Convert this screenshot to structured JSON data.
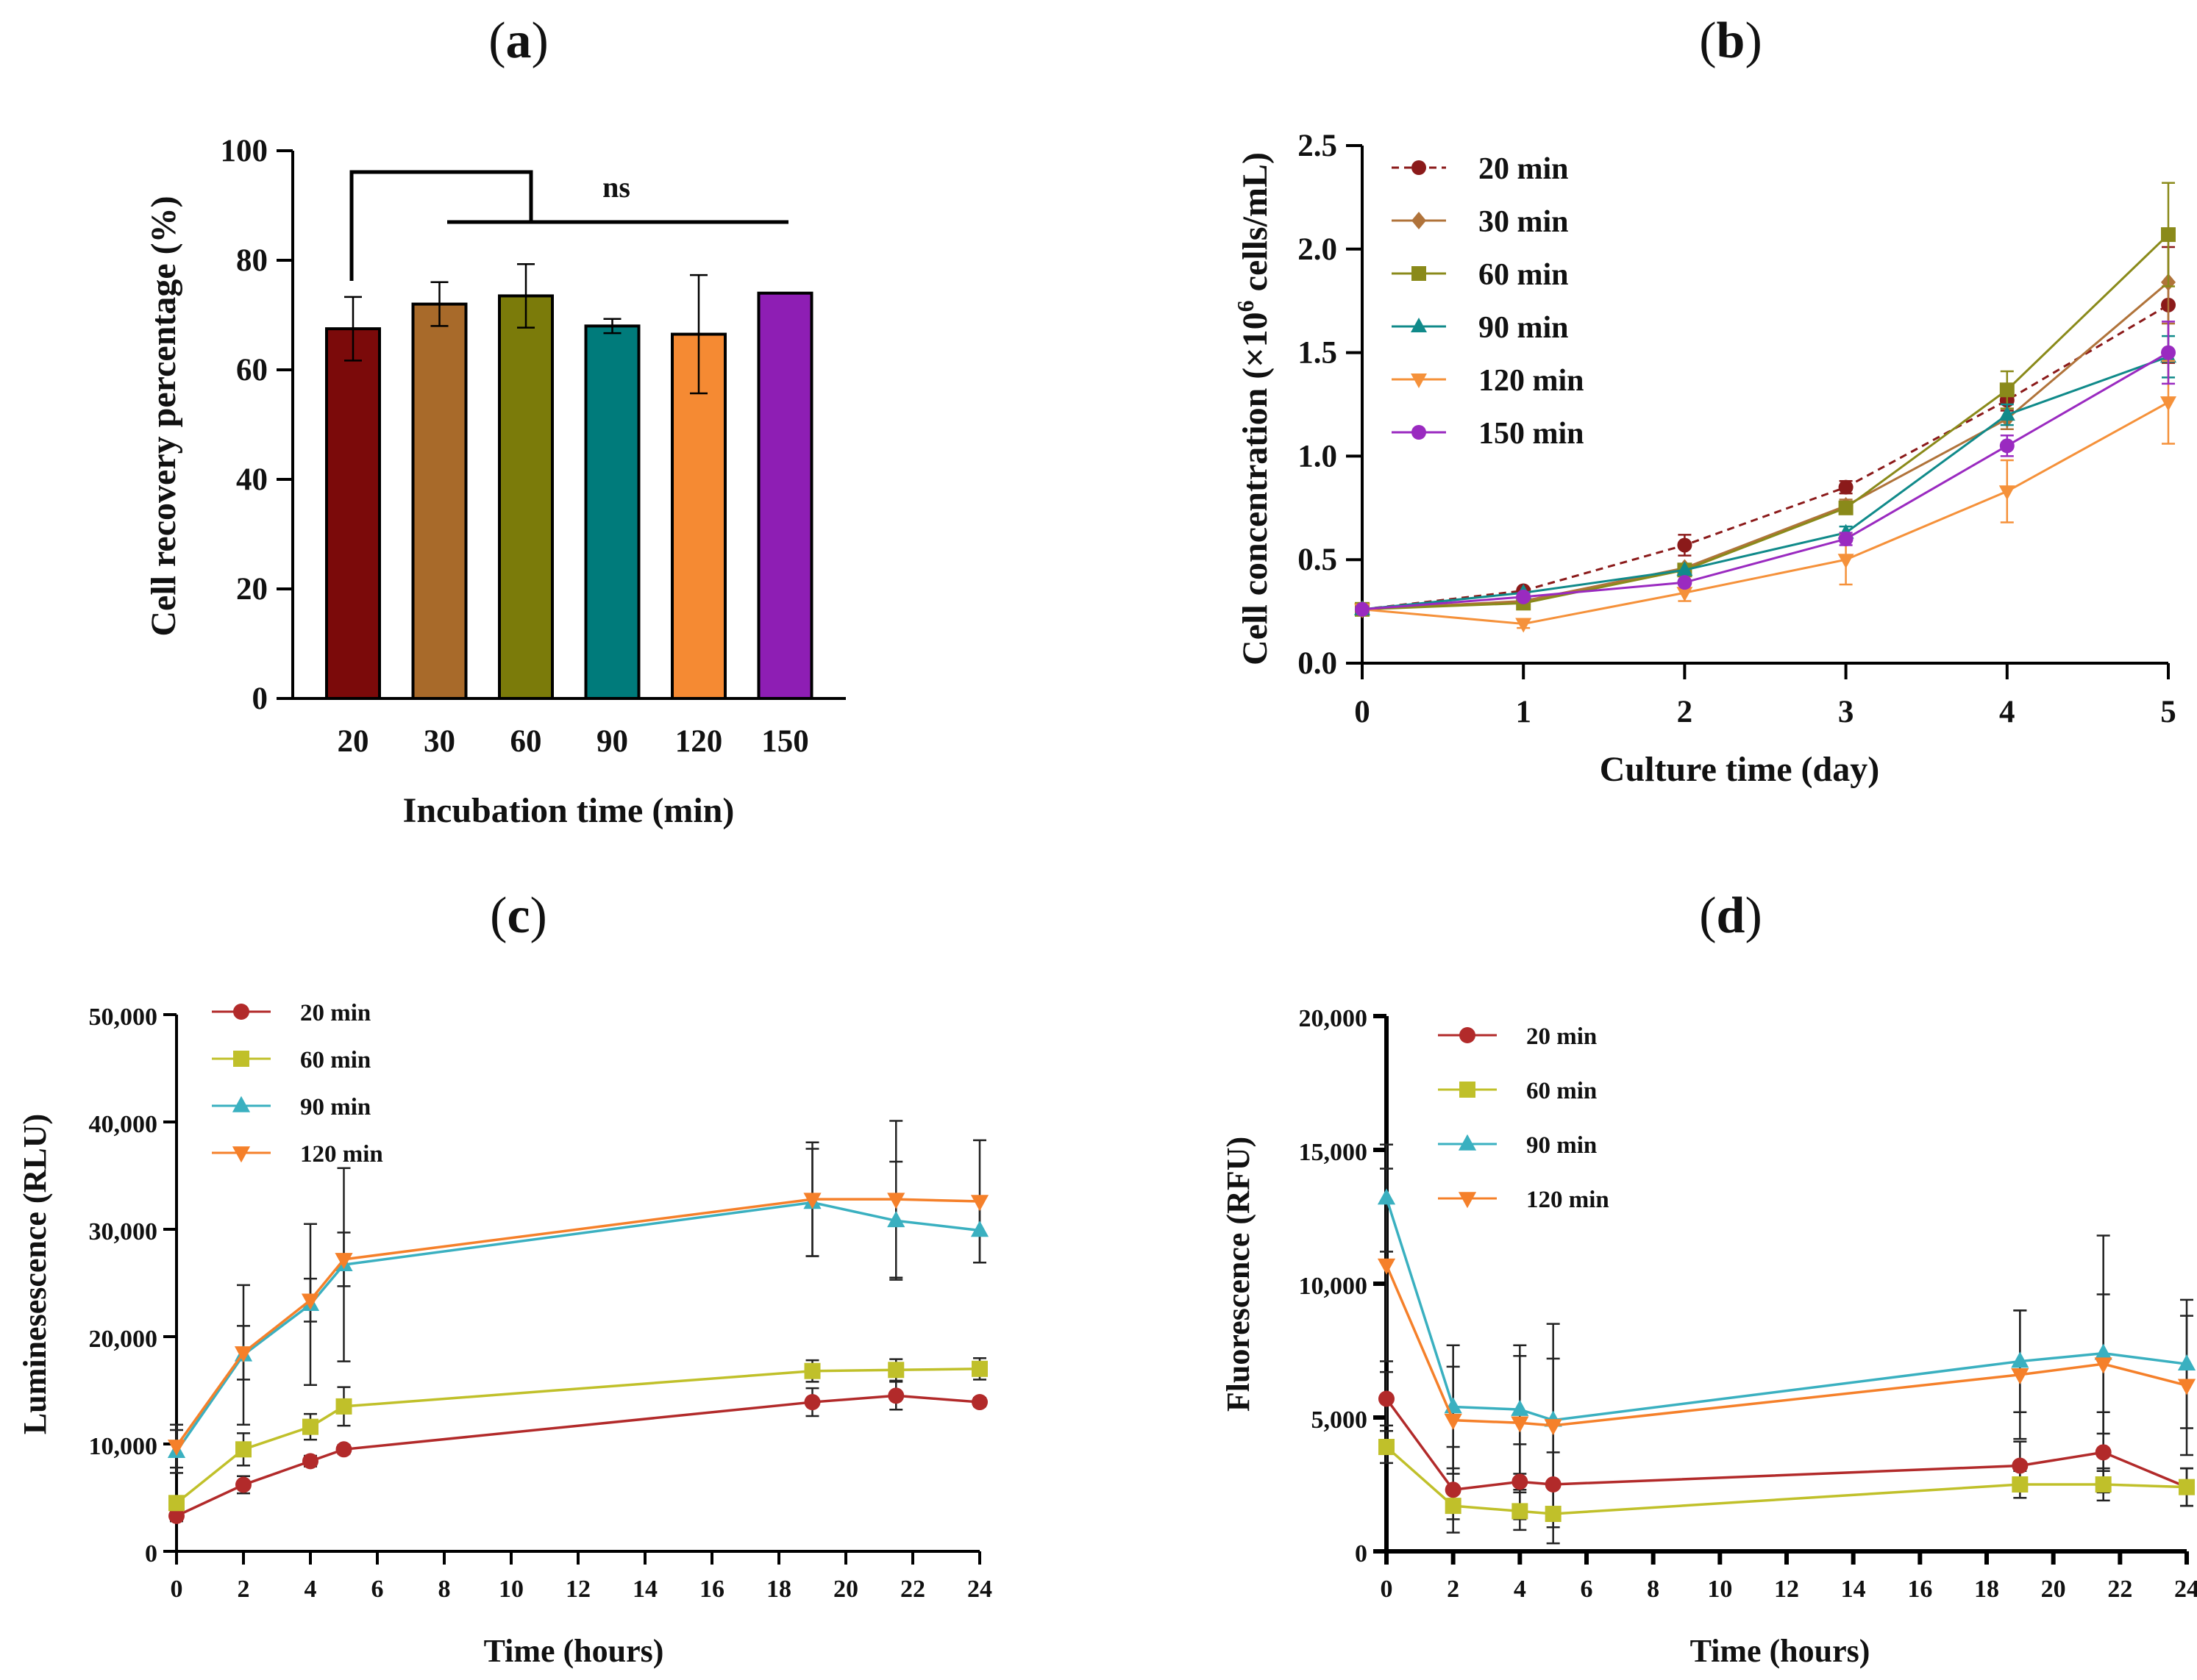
{
  "chart_data": [
    {
      "panel": "a",
      "label_open": "(",
      "label_letter": "a",
      "label_close": ")",
      "type": "bar",
      "title": "",
      "xlabel": "Incubation time (min)",
      "ylabel": "Cell recovery percentage (%)",
      "categories": [
        "20",
        "30",
        "60",
        "90",
        "120",
        "150"
      ],
      "values": [
        67.5,
        72,
        73.5,
        68,
        66.5,
        74
      ],
      "errors": [
        5.8,
        4,
        5.8,
        1.3,
        10.8,
        0
      ],
      "colors": [
        "#7b0a0a",
        "#a86a2a",
        "#7b7b0a",
        "#007b7b",
        "#f58a33",
        "#8e1eb4"
      ],
      "ylim": [
        0,
        100
      ],
      "yticks": [
        "0",
        "20",
        "40",
        "60",
        "80",
        "100"
      ],
      "significance": "ns"
    },
    {
      "panel": "b",
      "label_open": "(",
      "label_letter": "b",
      "label_close": ")",
      "type": "line",
      "title": "",
      "xlabel": "Culture time (day)",
      "ylabel_prefix": "Cell concentration (×10",
      "ylabel_sup": "6",
      "ylabel_suffix": " cells/mL)",
      "x": [
        0,
        1,
        2,
        3,
        4,
        5
      ],
      "xticks": [
        "0",
        "1",
        "2",
        "3",
        "4",
        "5"
      ],
      "ylim": [
        0,
        2.5
      ],
      "yticks": [
        "0.0",
        "0.5",
        "1.0",
        "1.5",
        "2.0",
        "2.5"
      ],
      "legend_position": "top-left",
      "series": [
        {
          "name": "20 min",
          "color": "#8b1a1a",
          "marker": "circle",
          "dashed": true,
          "values": [
            0.26,
            0.35,
            0.57,
            0.85,
            1.27,
            1.73
          ],
          "errors": [
            0,
            0,
            0.05,
            0.03,
            0.05,
            0.28
          ]
        },
        {
          "name": "30 min",
          "color": "#b0733a",
          "marker": "diamond",
          "dashed": false,
          "values": [
            0.26,
            0.3,
            0.46,
            0.76,
            1.18,
            1.84
          ],
          "errors": [
            0,
            0,
            0,
            0.03,
            0.05,
            0.2
          ]
        },
        {
          "name": "60 min",
          "color": "#8a8a1a",
          "marker": "square",
          "dashed": false,
          "values": [
            0.26,
            0.29,
            0.45,
            0.75,
            1.32,
            2.07
          ],
          "errors": [
            0,
            0,
            0,
            0.03,
            0.09,
            0.25
          ]
        },
        {
          "name": "90 min",
          "color": "#108a8a",
          "marker": "triangle",
          "dashed": false,
          "values": [
            0.26,
            0.34,
            0.45,
            0.63,
            1.2,
            1.48
          ],
          "errors": [
            0,
            0,
            0,
            0.03,
            0.05,
            0.1
          ]
        },
        {
          "name": "120 min",
          "color": "#f5913a",
          "marker": "triangle-down",
          "dashed": false,
          "values": [
            0.26,
            0.19,
            0.34,
            0.5,
            0.83,
            1.26
          ],
          "errors": [
            0,
            0.02,
            0.04,
            0.12,
            0.15,
            0.2
          ]
        },
        {
          "name": "150 min",
          "color": "#9a2ac0",
          "marker": "circle",
          "dashed": false,
          "values": [
            0.26,
            0.32,
            0.39,
            0.6,
            1.05,
            1.5
          ],
          "errors": [
            0,
            0,
            0,
            0.03,
            0.05,
            0.15
          ]
        }
      ]
    },
    {
      "panel": "c",
      "label_open": "(",
      "label_letter": "c",
      "label_close": ")",
      "type": "line",
      "title": "",
      "xlabel": "Time (hours)",
      "ylabel": "Luminesescence (RLU)",
      "x": [
        0,
        2,
        4,
        5,
        19,
        21.5,
        24
      ],
      "xlim": [
        0,
        24
      ],
      "xticks": [
        "0",
        "2",
        "4",
        "6",
        "8",
        "10",
        "12",
        "14",
        "16",
        "18",
        "20",
        "22",
        "24"
      ],
      "ylim": [
        0,
        50000
      ],
      "yticks": [
        "0",
        "10,000",
        "20,000",
        "30,000",
        "40,000",
        "50,000"
      ],
      "legend_position": "top-left",
      "series": [
        {
          "name": "20 min",
          "color": "#b22a2a",
          "marker": "circle",
          "values": [
            3300,
            6200,
            8400,
            9500,
            13900,
            14500,
            13900
          ],
          "errors": [
            500,
            800,
            500,
            400,
            1300,
            1300,
            400
          ]
        },
        {
          "name": "60 min",
          "color": "#c0c02a",
          "marker": "square",
          "values": [
            4500,
            9500,
            11600,
            13500,
            16800,
            16900,
            17000
          ],
          "errors": [
            500,
            1500,
            1200,
            1800,
            1000,
            1000,
            1000
          ]
        },
        {
          "name": "90 min",
          "color": "#3ab0c0",
          "marker": "triangle",
          "values": [
            9300,
            18300,
            23000,
            26700,
            32500,
            30800,
            29900
          ],
          "errors": [
            2000,
            6500,
            7500,
            9000,
            5000,
            5500,
            3000
          ]
        },
        {
          "name": "120 min",
          "color": "#f5802a",
          "marker": "triangle-down",
          "values": [
            9800,
            18500,
            23400,
            27200,
            32800,
            32800,
            32600
          ],
          "errors": [
            2000,
            2500,
            2000,
            2500,
            5300,
            7300,
            5700
          ]
        }
      ]
    },
    {
      "panel": "d",
      "label_open": "(",
      "label_letter": "d",
      "label_close": ")",
      "type": "line",
      "title": "",
      "xlabel": "Time (hours)",
      "ylabel": "Fluorescence (RFU)",
      "x": [
        0,
        2,
        4,
        5,
        19,
        21.5,
        24
      ],
      "xlim": [
        0,
        24
      ],
      "xticks": [
        "0",
        "2",
        "4",
        "6",
        "8",
        "10",
        "12",
        "14",
        "16",
        "18",
        "20",
        "22",
        "24"
      ],
      "ylim": [
        0,
        20000
      ],
      "yticks": [
        "0",
        "5,000",
        "10,000",
        "15,000",
        "20,000"
      ],
      "legend_position": "top-left",
      "series": [
        {
          "name": "20 min",
          "color": "#b22a2a",
          "marker": "circle",
          "values": [
            5700,
            2300,
            2600,
            2500,
            3200,
            3700,
            2400
          ],
          "errors": [
            1000,
            1600,
            1400,
            1200,
            900,
            1500,
            700
          ]
        },
        {
          "name": "60 min",
          "color": "#c0c02a",
          "marker": "square",
          "values": [
            3900,
            1700,
            1500,
            1400,
            2500,
            2500,
            2400
          ],
          "errors": [
            600,
            500,
            700,
            1100,
            500,
            600,
            700
          ]
        },
        {
          "name": "90 min",
          "color": "#3ab0c0",
          "marker": "triangle",
          "values": [
            13200,
            5400,
            5300,
            4900,
            7100,
            7400,
            7000
          ],
          "errors": [
            2000,
            2300,
            2400,
            2300,
            1900,
            4400,
            2400
          ]
        },
        {
          "name": "120 min",
          "color": "#f5802a",
          "marker": "triangle-down",
          "values": [
            10700,
            4900,
            4800,
            4700,
            6600,
            7000,
            6200
          ],
          "errors": [
            3600,
            2000,
            2500,
            3800,
            2400,
            2600,
            2600
          ]
        }
      ]
    }
  ]
}
